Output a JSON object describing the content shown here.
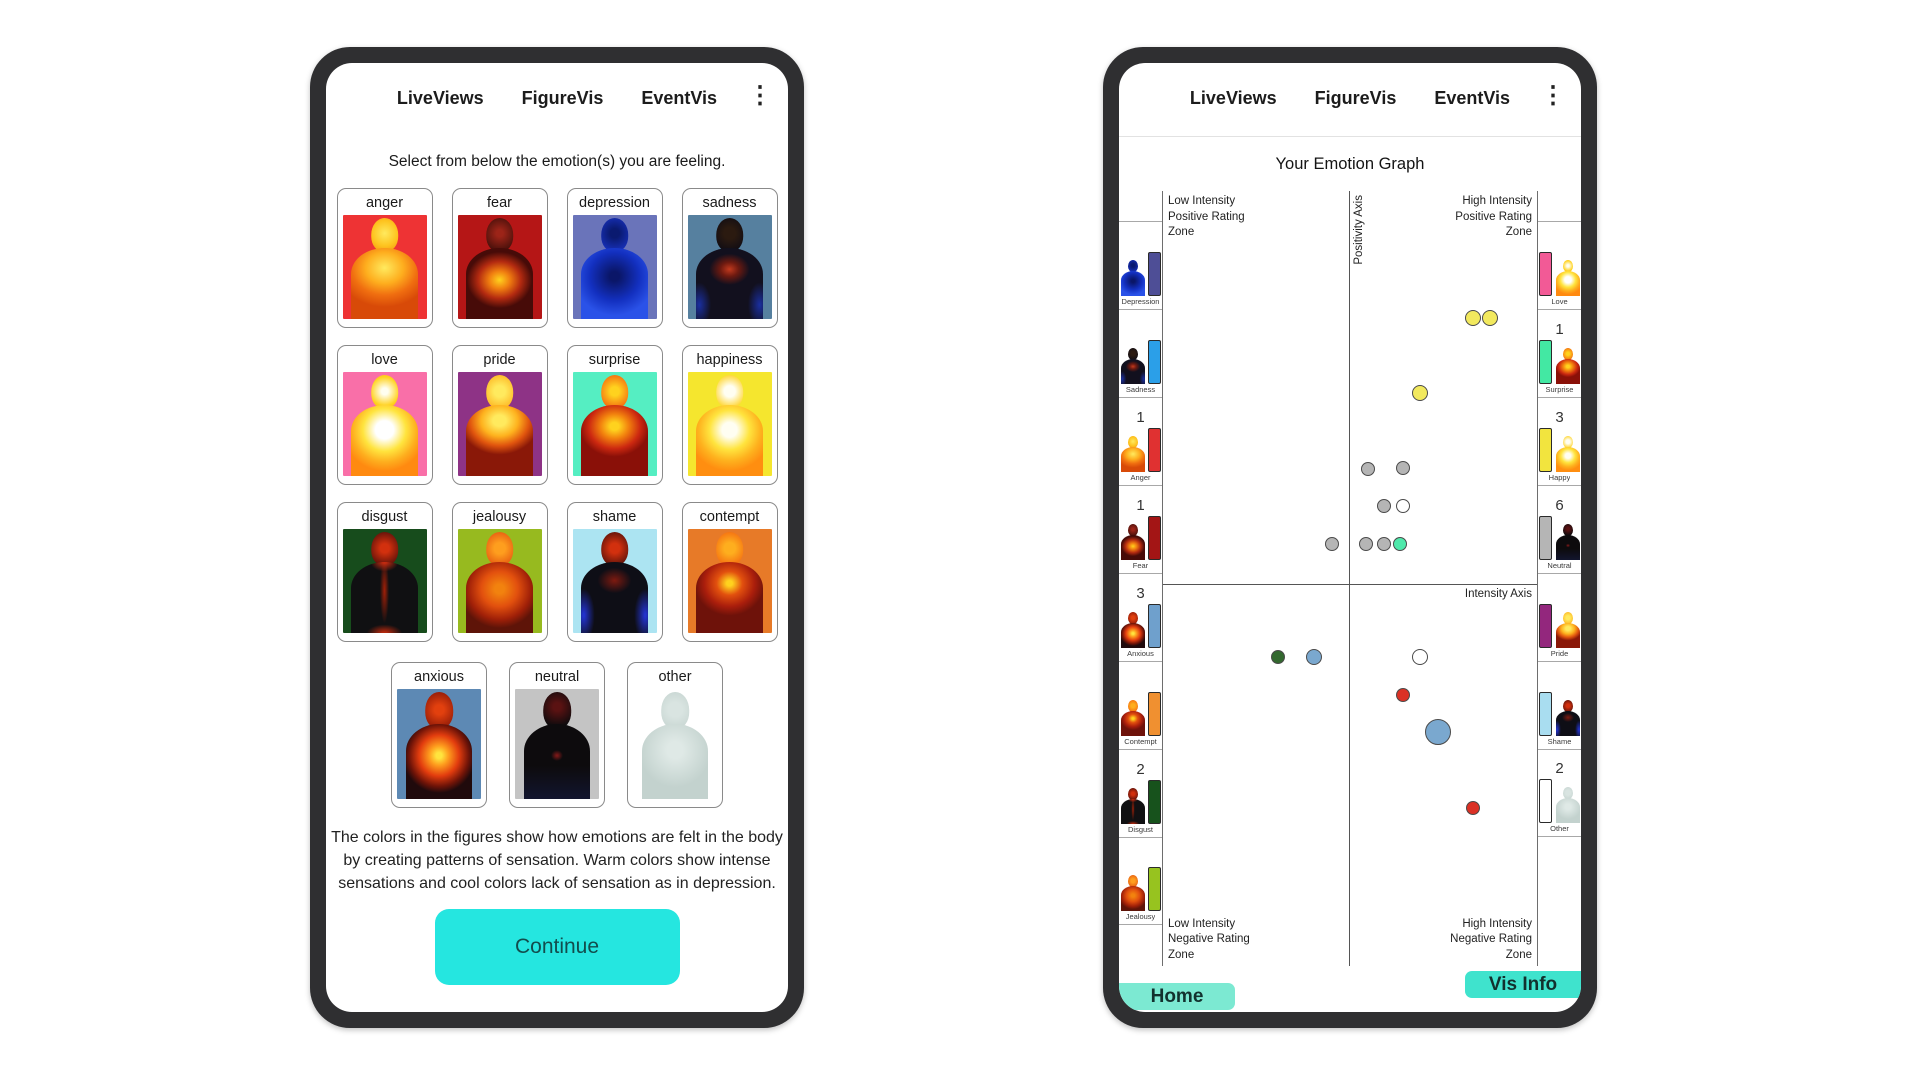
{
  "left_phone": {
    "nav": {
      "items": [
        "LiveViews",
        "FigureVis",
        "EventVis"
      ],
      "menu_icon": "kebab-menu-icon"
    },
    "prompt": "Select from below the emotion(s) you are feeling.",
    "emotions": [
      {
        "label": "anger",
        "bg": "#ee3334",
        "fig": "anger"
      },
      {
        "label": "fear",
        "bg": "#b51616",
        "fig": "fear"
      },
      {
        "label": "depression",
        "bg": "#6a74ba",
        "fig": "depression"
      },
      {
        "label": "sadness",
        "bg": "#56809f",
        "fig": "sadness"
      },
      {
        "label": "love",
        "bg": "#f96fa8",
        "fig": "love"
      },
      {
        "label": "pride",
        "bg": "#8e3386",
        "fig": "pride"
      },
      {
        "label": "surprise",
        "bg": "#55eec2",
        "fig": "surprise"
      },
      {
        "label": "happiness",
        "bg": "#f5e62e",
        "fig": "happy"
      },
      {
        "label": "disgust",
        "bg": "#174c1c",
        "fig": "disgust"
      },
      {
        "label": "jealousy",
        "bg": "#97ba1f",
        "fig": "jealousy"
      },
      {
        "label": "shame",
        "bg": "#ace4f2",
        "fig": "shame"
      },
      {
        "label": "contempt",
        "bg": "#e77a28",
        "fig": "contempt"
      }
    ],
    "extra_emotions": [
      {
        "label": "anxious",
        "bg": "#5d89b4",
        "fig": "anxious"
      },
      {
        "label": "neutral",
        "bg": "#c4c4c4",
        "fig": "neutral"
      },
      {
        "label": "other",
        "bg": "#ffffff",
        "fig": "other"
      }
    ],
    "description": "The colors in the figures show how emotions are felt in the body by creating patterns of sensation. Warm colors show intense sensations and cool colors lack of sensation as in depression.",
    "continue_label": "Continue",
    "continue_color": "#25e6e0"
  },
  "right_phone": {
    "nav": {
      "items": [
        "LiveViews",
        "FigureVis",
        "EventVis"
      ],
      "menu_icon": "kebab-menu-icon"
    },
    "title": "Your Emotion Graph",
    "zones": {
      "tl": [
        "Low Intensity",
        "Positive Rating",
        "Zone"
      ],
      "tr": [
        "High Intensity",
        "Positive Rating",
        "Zone"
      ],
      "bl": [
        "Low Intensity",
        "Negative Rating",
        "Zone"
      ],
      "br": [
        "High Intensity",
        "Negative Rating",
        "Zone"
      ]
    },
    "axes": {
      "vertical": "Positivity Axis",
      "horizontal": "Intensity Axis"
    },
    "left_sidebar": [
      {
        "label": "Depression",
        "count": "",
        "bar": "#4e4e96",
        "fig": "depression"
      },
      {
        "label": "Sadness",
        "count": "",
        "bar": "#2b9fe8",
        "fig": "sadness"
      },
      {
        "label": "Anger",
        "count": "1",
        "bar": "#e03131",
        "fig": "anger"
      },
      {
        "label": "Fear",
        "count": "1",
        "bar": "#a31515",
        "fig": "fear"
      },
      {
        "label": "Anxious",
        "count": "3",
        "bar": "#6fa0cc",
        "fig": "anxious"
      },
      {
        "label": "Contempt",
        "count": "",
        "bar": "#f09030",
        "fig": "contempt"
      },
      {
        "label": "Disgust",
        "count": "2",
        "bar": "#17521c",
        "fig": "disgust"
      },
      {
        "label": "Jealousy",
        "count": "",
        "bar": "#97c31f",
        "fig": "jealousy"
      }
    ],
    "right_sidebar": [
      {
        "label": "Love",
        "count": "",
        "bar": "#f25a96",
        "fig": "love"
      },
      {
        "label": "Surprise",
        "count": "1",
        "bar": "#43e8a3",
        "fig": "surprise"
      },
      {
        "label": "Happy",
        "count": "3",
        "bar": "#f2e43e",
        "fig": "happy"
      },
      {
        "label": "Neutral",
        "count": "6",
        "bar": "#b5b5b5",
        "fig": "neutral"
      },
      {
        "label": "Pride",
        "count": "",
        "bar": "#93277d",
        "fig": "pride"
      },
      {
        "label": "Shame",
        "count": "",
        "bar": "#a9ddf0",
        "fig": "shame"
      },
      {
        "label": "Other",
        "count": "2",
        "bar": "#ffffff",
        "fig": "other"
      }
    ],
    "buttons": {
      "home": "Home",
      "vis_info": "Vis Info",
      "home_color": "#7ce9d2",
      "vis_info_color": "#3fe3cd"
    },
    "chart_data": {
      "type": "scatter",
      "title": "Your Emotion Graph",
      "xlabel": "Intensity Axis",
      "ylabel": "Positivity Axis",
      "note": "point positions are percent of plot area from top-left; axes cross at x=49.7%, y=50.7%",
      "points": [
        {
          "x": 82.8,
          "y": 16.4,
          "r": 8,
          "c": "#f2e95e"
        },
        {
          "x": 87.5,
          "y": 16.4,
          "r": 8,
          "c": "#f2e95e"
        },
        {
          "x": 68.8,
          "y": 26.1,
          "r": 8,
          "c": "#f2e95e"
        },
        {
          "x": 54.7,
          "y": 35.9,
          "r": 7,
          "c": "#b5b5b5"
        },
        {
          "x": 64.1,
          "y": 35.7,
          "r": 7,
          "c": "#b5b5b5"
        },
        {
          "x": 59.1,
          "y": 40.6,
          "r": 7,
          "c": "#b5b5b5"
        },
        {
          "x": 64.1,
          "y": 40.6,
          "r": 7,
          "c": "#ffffff"
        },
        {
          "x": 45.1,
          "y": 45.5,
          "r": 7,
          "c": "#b5b5b5"
        },
        {
          "x": 54.4,
          "y": 45.5,
          "r": 7,
          "c": "#b5b5b5"
        },
        {
          "x": 59.1,
          "y": 45.5,
          "r": 7,
          "c": "#b5b5b5"
        },
        {
          "x": 63.5,
          "y": 45.5,
          "r": 7,
          "c": "#4fe9ab"
        },
        {
          "x": 30.7,
          "y": 60.1,
          "r": 7,
          "c": "#33682f"
        },
        {
          "x": 40.4,
          "y": 60.1,
          "r": 8,
          "c": "#7aa8cf"
        },
        {
          "x": 68.8,
          "y": 60.1,
          "r": 8,
          "c": "#ffffff"
        },
        {
          "x": 64.1,
          "y": 65.0,
          "r": 7,
          "c": "#db3125"
        },
        {
          "x": 73.4,
          "y": 69.8,
          "r": 13,
          "c": "#7aa8cf"
        },
        {
          "x": 82.8,
          "y": 79.6,
          "r": 7,
          "c": "#db3125"
        }
      ]
    }
  }
}
